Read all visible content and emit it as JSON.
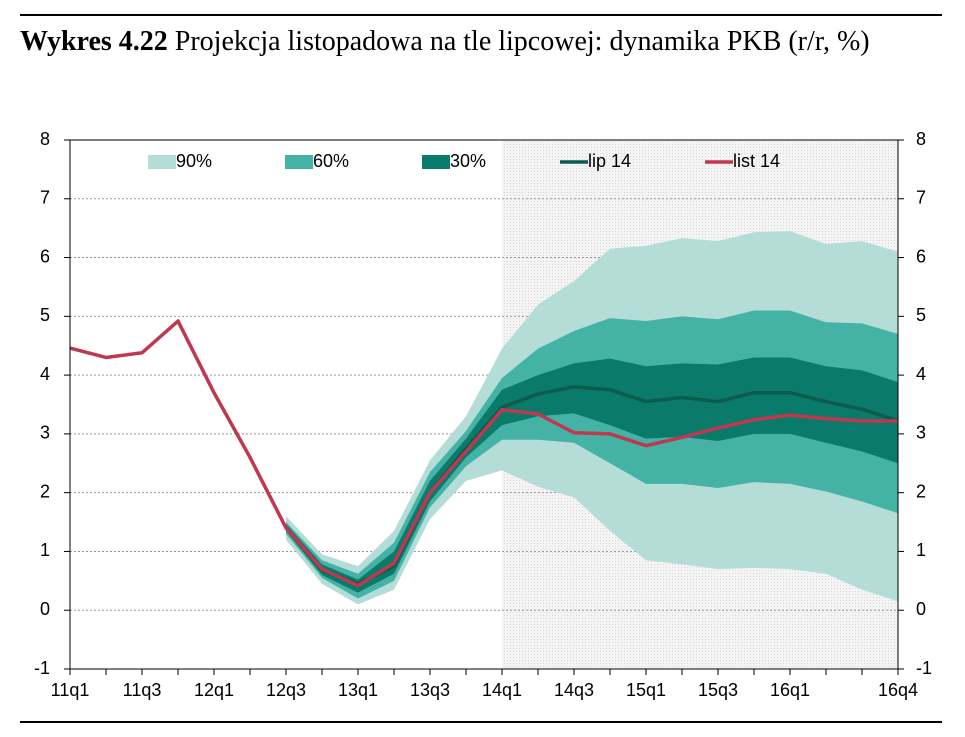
{
  "chart_data": {
    "type": "fan",
    "title_label": "Wykres 4.22",
    "title": "Projekcja listopadowa na tle lipcowej: dynamika PKB (r/r, %)",
    "categories": [
      "11q1",
      null,
      "11q3",
      null,
      "12q1",
      null,
      "12q3",
      null,
      "13q1",
      null,
      "13q3",
      null,
      "14q1",
      null,
      "14q3",
      null,
      "15q1",
      null,
      "15q3",
      null,
      "16q1",
      null,
      null,
      "16q4"
    ],
    "ylim": [
      -1,
      8
    ],
    "yticks": [
      -1,
      0,
      1,
      2,
      3,
      4,
      5,
      6,
      7,
      8
    ],
    "grid": true,
    "shade_from": "14q1",
    "bands": [
      {
        "name": "90%",
        "color": "#b3ddd6",
        "lower": [
          null,
          null,
          null,
          null,
          null,
          null,
          1.2,
          0.45,
          0.1,
          0.35,
          1.55,
          2.2,
          2.38,
          2.1,
          1.92,
          1.35,
          0.85,
          0.78,
          0.7,
          0.72,
          0.7,
          0.62,
          0.35,
          0.15
        ],
        "upper": [
          null,
          null,
          null,
          null,
          null,
          null,
          1.6,
          0.95,
          0.75,
          1.35,
          2.55,
          3.3,
          4.45,
          5.2,
          5.6,
          6.15,
          6.2,
          6.33,
          6.28,
          6.43,
          6.45,
          6.23,
          6.28,
          6.1
        ]
      },
      {
        "name": "60%",
        "color": "#44b3a5",
        "lower": [
          null,
          null,
          null,
          null,
          null,
          null,
          1.3,
          0.55,
          0.2,
          0.5,
          1.75,
          2.45,
          2.9,
          2.9,
          2.85,
          2.5,
          2.15,
          2.15,
          2.08,
          2.18,
          2.15,
          2.02,
          1.85,
          1.65
        ],
        "upper": [
          null,
          null,
          null,
          null,
          null,
          null,
          1.5,
          0.85,
          0.62,
          1.15,
          2.35,
          3.05,
          3.95,
          4.45,
          4.75,
          4.97,
          4.92,
          5.0,
          4.95,
          5.1,
          5.1,
          4.9,
          4.88,
          4.7
        ]
      },
      {
        "name": "30%",
        "color": "#0a7a6a",
        "lower": [
          null,
          null,
          null,
          null,
          null,
          null,
          1.35,
          0.6,
          0.3,
          0.62,
          1.85,
          2.6,
          3.15,
          3.3,
          3.35,
          3.15,
          2.92,
          2.95,
          2.88,
          3.0,
          3.0,
          2.85,
          2.7,
          2.5
        ],
        "upper": [
          null,
          null,
          null,
          null,
          null,
          null,
          1.47,
          0.78,
          0.52,
          1.0,
          2.2,
          2.92,
          3.75,
          4.0,
          4.2,
          4.28,
          4.15,
          4.2,
          4.18,
          4.3,
          4.3,
          4.15,
          4.08,
          3.88
        ]
      }
    ],
    "series": [
      {
        "name": "lip 14",
        "color": "#0d5a4f",
        "values": [
          null,
          null,
          null,
          null,
          null,
          null,
          1.4,
          0.68,
          0.45,
          0.75,
          2.0,
          2.75,
          3.45,
          3.68,
          3.8,
          3.75,
          3.55,
          3.62,
          3.55,
          3.7,
          3.7,
          3.55,
          3.42,
          3.22
        ]
      },
      {
        "name": "list 14",
        "color": "#c0384f",
        "values": [
          4.46,
          4.3,
          4.38,
          4.92,
          3.7,
          2.6,
          1.4,
          0.7,
          0.42,
          0.8,
          2.0,
          2.7,
          3.41,
          3.34,
          3.02,
          3.0,
          2.8,
          2.94,
          3.1,
          3.24,
          3.32,
          3.26,
          3.22,
          3.22
        ]
      }
    ]
  }
}
